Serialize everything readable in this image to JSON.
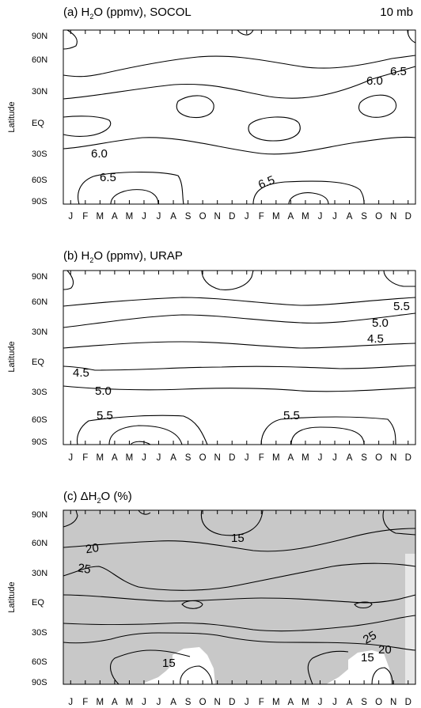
{
  "figure": {
    "months": [
      "J",
      "F",
      "M",
      "A",
      "M",
      "J",
      "J",
      "A",
      "S",
      "O",
      "N",
      "D",
      "J",
      "F",
      "M",
      "A",
      "M",
      "J",
      "J",
      "A",
      "S",
      "O",
      "N",
      "D"
    ],
    "lat_ticks": [
      "90N",
      "60N",
      "30N",
      "EQ",
      "30S",
      "60S",
      "90S"
    ],
    "ylabel": "Latitude",
    "panels": [
      {
        "id": "a",
        "title_prefix": "(a) H",
        "title_sub": "2",
        "title_suffix": "O  (ppmv), SOCOL",
        "right_label": "10 mb",
        "shaded": false,
        "contour_labels": [
          "6.5",
          "6.0",
          "6.0",
          "6.5",
          "6.5"
        ]
      },
      {
        "id": "b",
        "title_prefix": "(b) H",
        "title_sub": "2",
        "title_suffix": "O  (ppmv), URAP",
        "right_label": "",
        "shaded": false,
        "contour_labels": [
          "5.5",
          "5.0",
          "4.5",
          "4.5",
          "5.0",
          "5.5",
          "5.5"
        ]
      },
      {
        "id": "c",
        "title_prefix": "(c) ΔH",
        "title_sub": "2",
        "title_suffix": "O  (%)",
        "right_label": "",
        "shaded": true,
        "shade_color": "#c8c8c8",
        "contour_labels": [
          "15",
          "20",
          "25",
          "25",
          "20",
          "15",
          "15"
        ]
      }
    ]
  }
}
